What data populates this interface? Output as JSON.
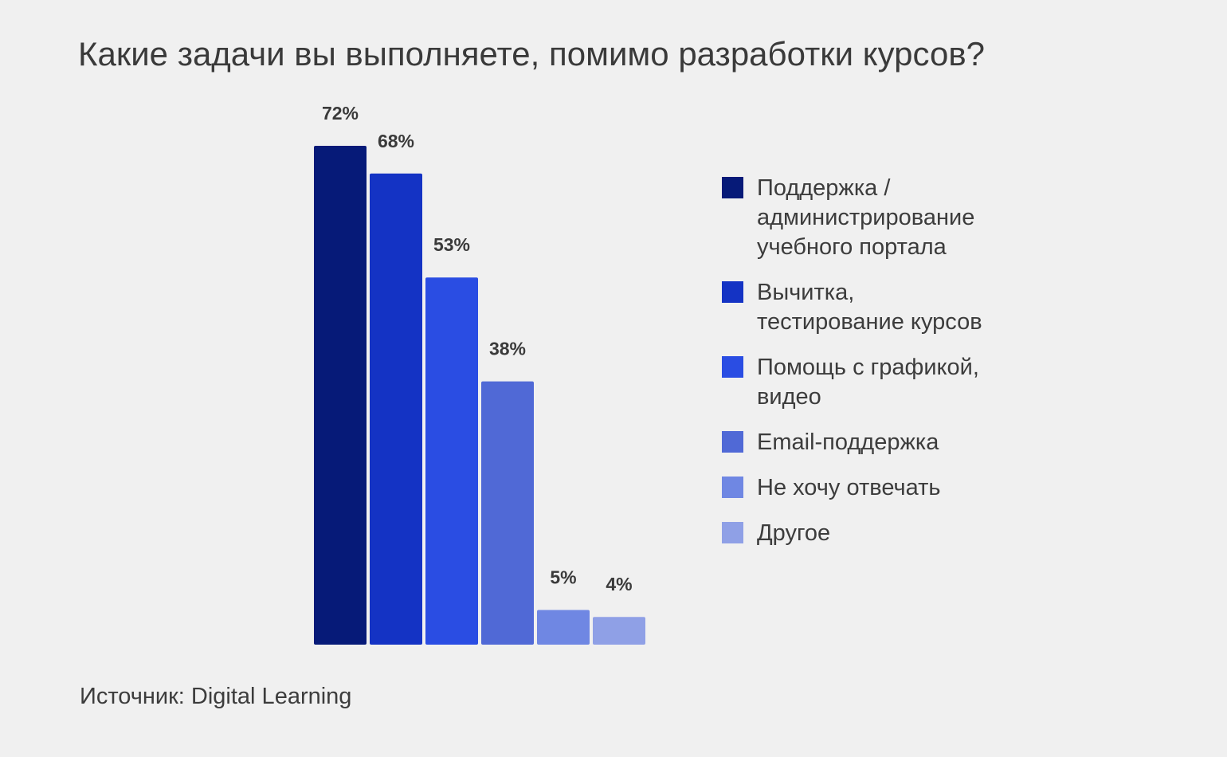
{
  "title": "Какие задачи вы выполняете, помимо разработки курсов?",
  "source": "Источник: Digital Learning",
  "chart_data": {
    "type": "bar",
    "title": "Какие задачи вы выполняете, помимо разработки курсов?",
    "xlabel": "",
    "ylabel": "",
    "ylim": [
      0,
      72
    ],
    "grid": false,
    "legend_position": "right",
    "categories": [
      "Поддержка / администрирование учебного портала",
      "Вычитка, тестирование курсов",
      "Помощь с графикой, видео",
      "Email-поддержка",
      "Не хочу отвечать",
      "Другое"
    ],
    "values": [
      72,
      68,
      53,
      38,
      5,
      4
    ],
    "value_labels": [
      "72%",
      "68%",
      "53%",
      "38%",
      "5%",
      "4%"
    ],
    "colors": [
      "#061a78",
      "#1433c4",
      "#2a4de3",
      "#5069d6",
      "#6f87e3",
      "#8fa0e6"
    ]
  }
}
